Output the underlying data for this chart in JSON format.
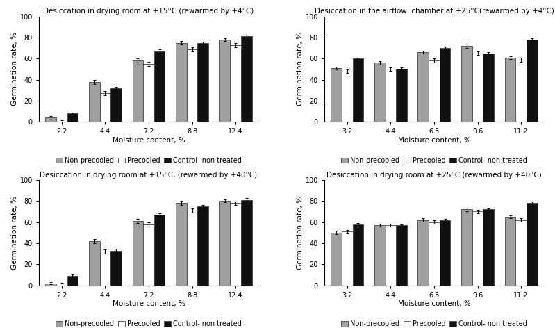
{
  "subplots": [
    {
      "title": "Desiccation in drying room at +15°C (rewarmed by +4°C)",
      "xlabel": "Moisture content, %",
      "ylabel": "Germination rate, %",
      "x_labels": [
        "2.2",
        "4.4",
        "7.2",
        "8.8",
        "12.4"
      ],
      "non_precooled": [
        4,
        38,
        58,
        75,
        78
      ],
      "precooled": [
        2,
        27,
        55,
        69,
        73
      ],
      "control": [
        8,
        32,
        67,
        75,
        81
      ],
      "non_precooled_err": [
        1.5,
        2,
        2,
        1.5,
        1.5
      ],
      "precooled_err": [
        0.5,
        2,
        2,
        2,
        2
      ],
      "control_err": [
        1,
        1.5,
        1.5,
        1,
        1.5
      ]
    },
    {
      "title": "Desiccation in the airflow  chamber at +25°C(rewarmed by +4°C)",
      "xlabel": "Moisture content, %",
      "ylabel": "Germination rate, %",
      "x_labels": [
        "3.2",
        "4.4",
        "6.3",
        "9.6",
        "11.2"
      ],
      "non_precooled": [
        51,
        56,
        66,
        72,
        61
      ],
      "precooled": [
        48,
        50,
        58,
        65,
        59
      ],
      "control": [
        60,
        50,
        70,
        65,
        78
      ],
      "non_precooled_err": [
        1.5,
        1.5,
        1.5,
        2,
        1.5
      ],
      "precooled_err": [
        1.5,
        1.5,
        2,
        1.5,
        2
      ],
      "control_err": [
        1,
        1.5,
        1.5,
        1,
        1.5
      ]
    },
    {
      "title": "Desiccation in drying room at +15°C, (rewarmed by +40°C)",
      "xlabel": "Moisture content, %",
      "ylabel": "Germination rate, %",
      "x_labels": [
        "2.2",
        "4.4",
        "7.2",
        "8.8",
        "12.4"
      ],
      "non_precooled": [
        2,
        42,
        61,
        78,
        80
      ],
      "precooled": [
        2,
        32,
        58,
        71,
        78
      ],
      "control": [
        9,
        33,
        67,
        75,
        81
      ],
      "non_precooled_err": [
        1,
        2,
        2,
        2,
        1.5
      ],
      "precooled_err": [
        0.5,
        2,
        2,
        2,
        1.5
      ],
      "control_err": [
        1,
        1.5,
        1.5,
        1,
        1.5
      ]
    },
    {
      "title": "Desiccation in drying room at +25°C (rewarmed by +40°C)",
      "xlabel": "Moisture content, %",
      "ylabel": "Germination rate, %",
      "x_labels": [
        "3.2",
        "4.4",
        "6.3",
        "9.6",
        "11.2"
      ],
      "non_precooled": [
        50,
        57,
        62,
        72,
        65
      ],
      "precooled": [
        51,
        57,
        60,
        70,
        62
      ],
      "control": [
        58,
        57,
        62,
        72,
        78
      ],
      "non_precooled_err": [
        1.5,
        1.5,
        1.5,
        1.5,
        1.5
      ],
      "precooled_err": [
        1.5,
        1.5,
        1.5,
        1.5,
        1.5
      ],
      "control_err": [
        1,
        1,
        1,
        1,
        1.5
      ]
    }
  ],
  "colors": {
    "non_precooled": "#a0a0a0",
    "precooled": "#ffffff",
    "control": "#111111"
  },
  "bar_edge_color": "#444444",
  "legend_labels": [
    "Non-precooled",
    "Precooled",
    "Control- non treated"
  ],
  "ylim": [
    0,
    100
  ],
  "yticks": [
    0,
    20,
    40,
    60,
    80,
    100
  ],
  "title_fontsize": 7.5,
  "label_fontsize": 7.5,
  "tick_fontsize": 7,
  "legend_fontsize": 7
}
